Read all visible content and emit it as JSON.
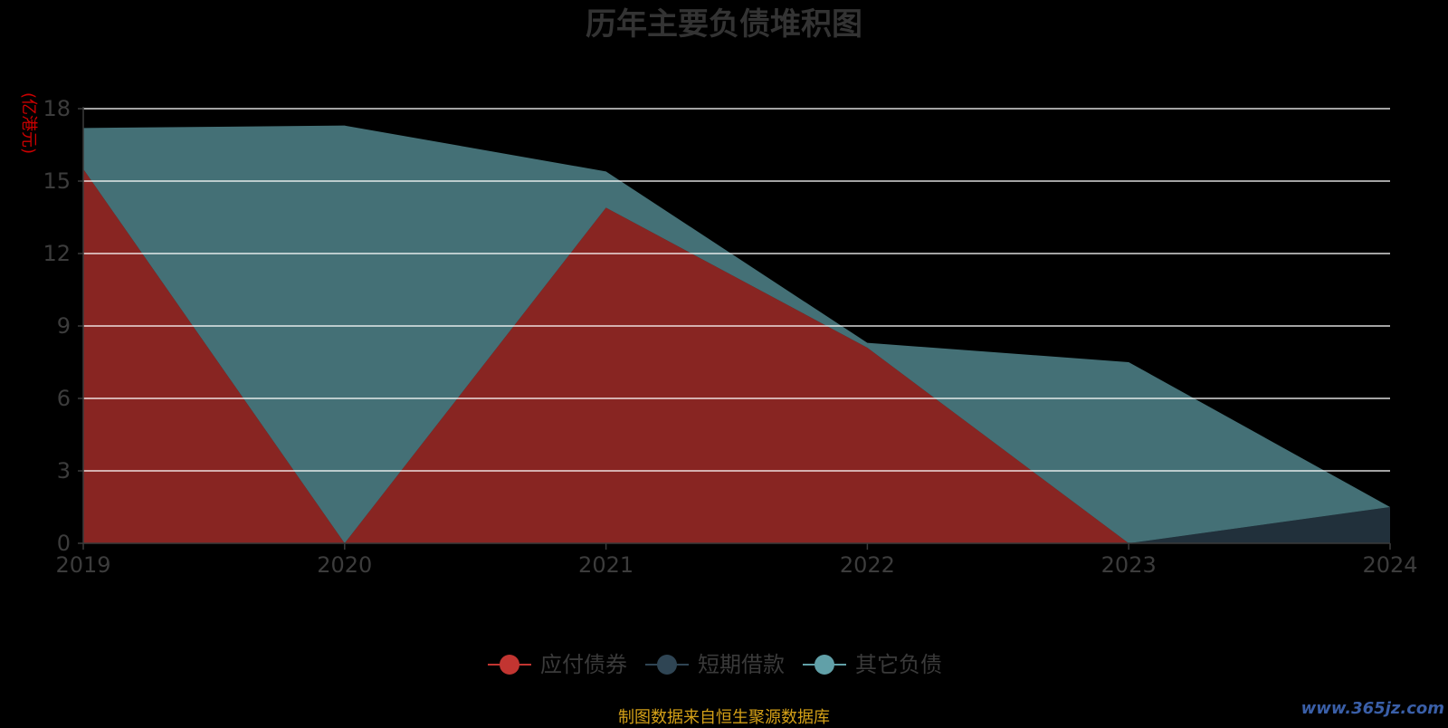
{
  "chart_data": {
    "type": "area",
    "stacked": true,
    "title": "历年主要负债堆积图",
    "ylabel": "(亿港元)",
    "xlabel": "",
    "x": [
      "2019",
      "2020",
      "2021",
      "2022",
      "2023",
      "2024"
    ],
    "ylim": [
      0,
      18
    ],
    "yticks": [
      0,
      3,
      6,
      9,
      12,
      15,
      18
    ],
    "grid": true,
    "legend_position": "bottom-center",
    "series": [
      {
        "name": "应付债券",
        "color": "#c23531",
        "values": [
          15.5,
          0,
          13.9,
          8.1,
          0,
          0
        ]
      },
      {
        "name": "短期借款",
        "color": "#2f4554",
        "values": [
          0,
          0,
          0,
          0,
          0,
          1.5
        ]
      },
      {
        "name": "其它负债",
        "color": "#61a0a8",
        "values": [
          1.7,
          17.3,
          1.5,
          0.2,
          7.5,
          0
        ]
      }
    ]
  },
  "footer": "制图数据来自恒生聚源数据库",
  "watermark": "www.365jz.com"
}
